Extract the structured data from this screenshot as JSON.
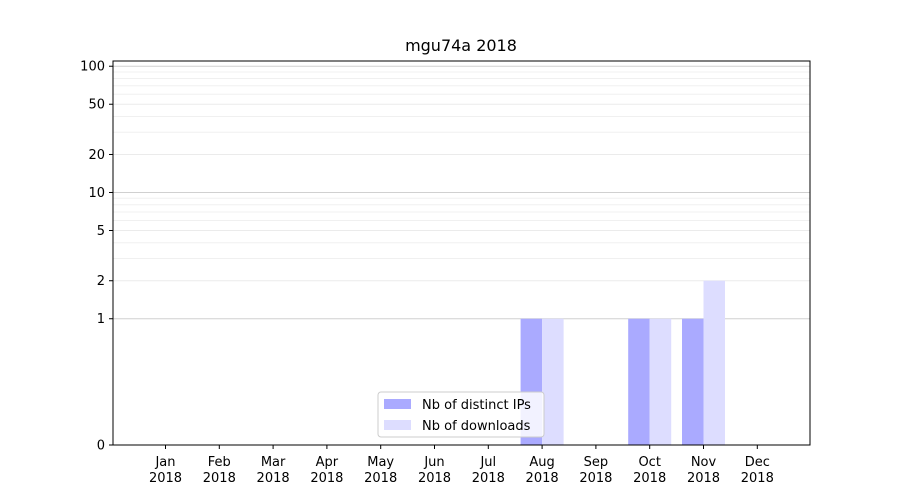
{
  "chart_data": {
    "type": "bar",
    "title": "mgu74a 2018",
    "xlabel": "",
    "ylabel": "",
    "y_scale": "symlog",
    "categories": [
      [
        "Jan",
        "2018"
      ],
      [
        "Feb",
        "2018"
      ],
      [
        "Mar",
        "2018"
      ],
      [
        "Apr",
        "2018"
      ],
      [
        "May",
        "2018"
      ],
      [
        "Jun",
        "2018"
      ],
      [
        "Jul",
        "2018"
      ],
      [
        "Aug",
        "2018"
      ],
      [
        "Sep",
        "2018"
      ],
      [
        "Oct",
        "2018"
      ],
      [
        "Nov",
        "2018"
      ],
      [
        "Dec",
        "2018"
      ]
    ],
    "series": [
      {
        "name": "Nb of distinct IPs",
        "color": "#aaaaff",
        "values": [
          0,
          0,
          0,
          0,
          0,
          0,
          0,
          1,
          0,
          1,
          1,
          0
        ]
      },
      {
        "name": "Nb of downloads",
        "color": "#ddddff",
        "values": [
          0,
          0,
          0,
          0,
          0,
          0,
          0,
          1,
          0,
          1,
          2,
          0
        ]
      }
    ],
    "y_ticks": [
      0,
      1,
      2,
      5,
      10,
      20,
      50,
      100
    ],
    "y_tick_labels": [
      "0",
      "1",
      "2",
      "5",
      "10",
      "20",
      "50",
      "100"
    ],
    "ylim": [
      0,
      110
    ],
    "grid": true,
    "legend_position": "bottom-center"
  }
}
